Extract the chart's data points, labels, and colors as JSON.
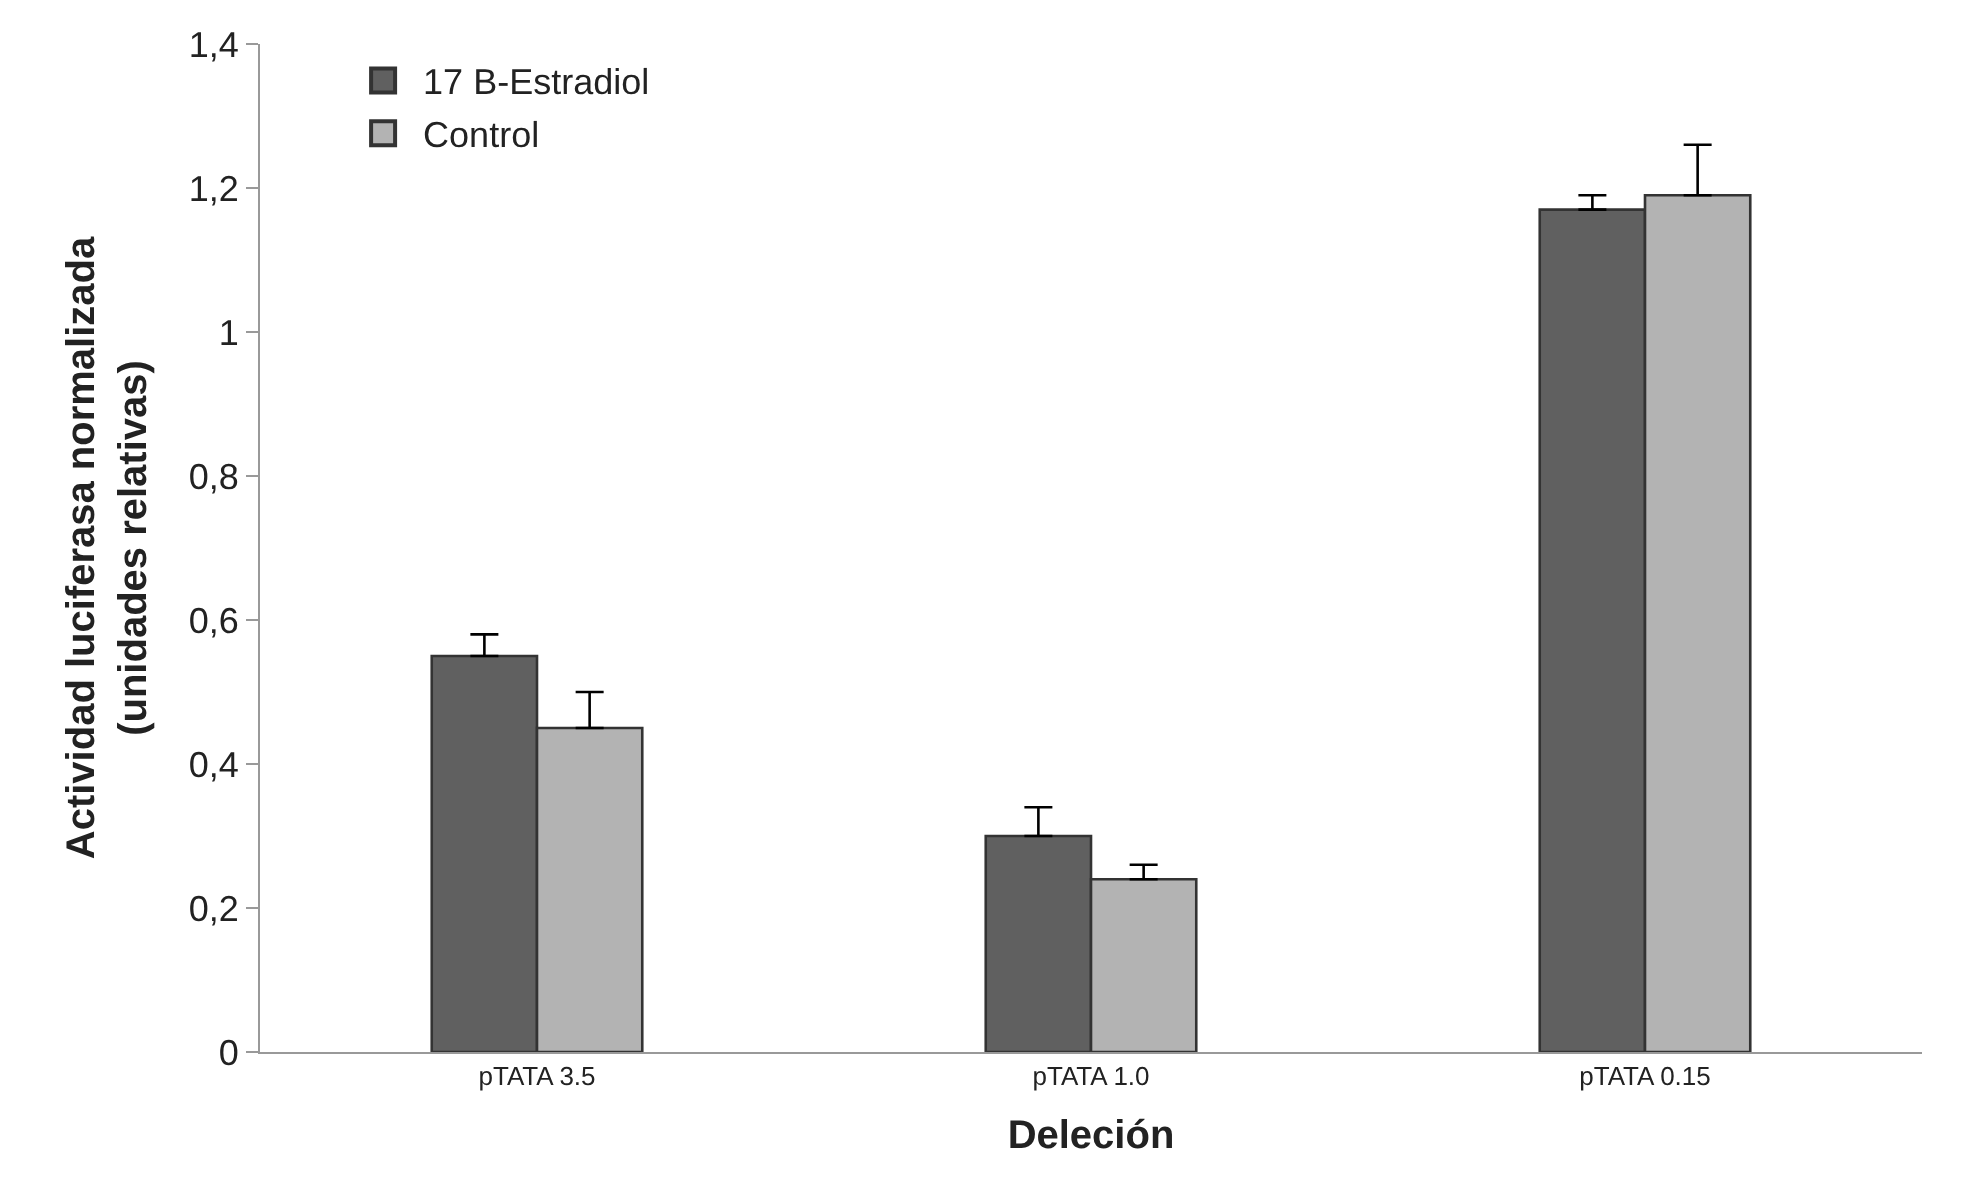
{
  "chart_data": {
    "type": "bar",
    "xlabel": "Deleción",
    "ylabel": "Actividad luciferasa normalizada\n(unidades relativas)",
    "categories": [
      "pTATA 3.5",
      "pTATA 1.0",
      "pTATA 0.15"
    ],
    "series": [
      {
        "name": "17 B-Estradiol",
        "color": "#606060",
        "values": [
          0.55,
          0.3,
          1.17
        ],
        "errors": [
          [
            0.55,
            0.58
          ],
          [
            0.3,
            0.34
          ],
          [
            1.17,
            1.19
          ]
        ]
      },
      {
        "name": "Control",
        "color": "#b3b3b3",
        "values": [
          0.45,
          0.24,
          1.19
        ],
        "errors": [
          [
            0.45,
            0.5
          ],
          [
            0.24,
            0.26
          ],
          [
            1.19,
            1.26
          ]
        ]
      }
    ],
    "ylim": [
      0,
      1.4
    ],
    "yticks": [
      0,
      {
        "value": 0.2,
        "label": "0,2"
      },
      {
        "value": 0.4,
        "label": "0,4"
      },
      {
        "value": 0.6,
        "label": "0,6"
      },
      {
        "value": 0.8,
        "label": "0,8"
      },
      1,
      {
        "value": 1.2,
        "label": "1,2"
      },
      {
        "value": 1.4,
        "label": "1,4"
      }
    ],
    "legend": "top left"
  }
}
